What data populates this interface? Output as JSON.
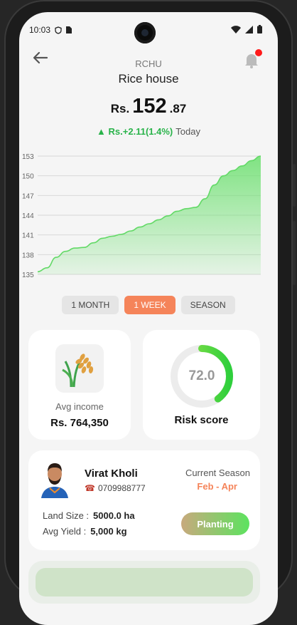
{
  "status_bar": {
    "time": "10:03"
  },
  "header": {
    "ticker": "RCHU",
    "title": "Rice house"
  },
  "price": {
    "currency": "Rs.",
    "integer": "152",
    "decimal": ".87"
  },
  "change": {
    "value": "Rs.+2.11(1.4%)",
    "period": "Today"
  },
  "chart_data": {
    "type": "area",
    "y_ticks": [
      "153",
      "150",
      "147",
      "144",
      "141",
      "138",
      "135"
    ],
    "ylim": [
      135,
      153
    ],
    "grid": true,
    "series": [
      {
        "values": [
          135.4,
          136.0,
          137.6,
          138.5,
          139.0,
          139.1,
          139.8,
          140.5,
          140.8,
          141.1,
          141.6,
          142.2,
          142.7,
          143.3,
          143.9,
          144.6,
          145.0,
          145.2,
          146.5,
          148.6,
          150.0,
          150.8,
          151.5,
          152.3,
          153.0
        ]
      }
    ],
    "color": "#6be06e"
  },
  "ranges": [
    {
      "label": "1 MONTH",
      "active": false
    },
    {
      "label": "1 WEEK",
      "active": true
    },
    {
      "label": "SEASON",
      "active": false
    }
  ],
  "income": {
    "label": "Avg income",
    "value": "Rs. 764,350"
  },
  "risk": {
    "value": "72.0",
    "label": "Risk score",
    "fraction": 0.4
  },
  "farmer": {
    "name": "Virat Kholi",
    "phone": "0709988777",
    "season_label": "Current Season",
    "season_value": "Feb - Apr",
    "land_label": "Land Size :",
    "land_value": "5000.0 ha",
    "yield_label": "Avg Yield :",
    "yield_value": "5,000 kg",
    "stage": "Planting"
  },
  "colors": {
    "accent": "#f5845a",
    "up": "#29b34a",
    "chart": "#6be06e"
  }
}
